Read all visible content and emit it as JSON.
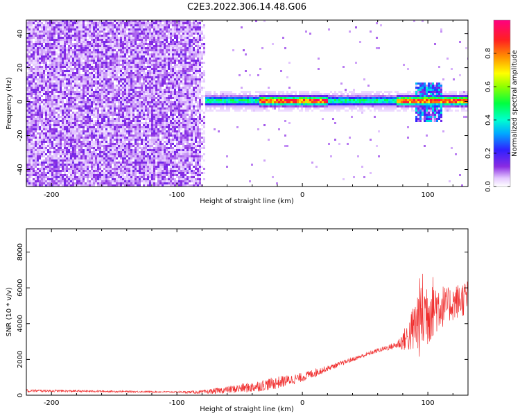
{
  "title": "C2E3.2022.306.14.48.G06",
  "chart_data": [
    {
      "type": "heatmap",
      "xlabel": "Height of straight line (km)",
      "ylabel": "Frequency (Hz)",
      "xlim": [
        -220,
        132
      ],
      "ylim": [
        -50,
        48
      ],
      "x_ticks": [
        -200,
        -100,
        0,
        100
      ],
      "y_ticks": [
        -40,
        -20,
        0,
        20,
        40
      ],
      "colorbar": {
        "label": "Normalized spectral amplitude",
        "range": [
          0,
          1
        ],
        "ticks": [
          0.0,
          0.2,
          0.4,
          0.6,
          0.8
        ],
        "colormap": "rainbow-magenta"
      },
      "description": {
        "noise_region_x": [
          -220,
          -78
        ],
        "signal_band_freq_hz": 1,
        "signal_band_x": [
          -78,
          132
        ],
        "peak_amplitude_regions_x": [
          [
            -35,
            20
          ],
          [
            75,
            132
          ]
        ]
      }
    },
    {
      "type": "line",
      "xlabel": "Height of straight line (km)",
      "ylabel": "SNR (10 * v/v)",
      "xlim": [
        -220,
        132
      ],
      "ylim": [
        0,
        9300
      ],
      "x_ticks": [
        -200,
        -100,
        0,
        100
      ],
      "y_ticks": [
        0,
        2000,
        4000,
        6000,
        8000
      ],
      "color": "#f03030",
      "series": [
        {
          "name": "",
          "x": [
            -220,
            -200,
            -150,
            -100,
            -80,
            -60,
            -40,
            -20,
            0,
            10,
            20,
            40,
            60,
            75,
            85,
            95,
            105,
            115,
            132
          ],
          "y": [
            250,
            240,
            210,
            180,
            170,
            300,
            450,
            700,
            1000,
            1250,
            1500,
            2000,
            2500,
            2800,
            3300,
            4500,
            5000,
            5000,
            5500
          ],
          "noise_amp": [
            80,
            60,
            50,
            40,
            100,
            200,
            300,
            350,
            250,
            250,
            150,
            120,
            120,
            200,
            900,
            2500,
            1700,
            1000,
            1000
          ]
        }
      ]
    }
  ]
}
